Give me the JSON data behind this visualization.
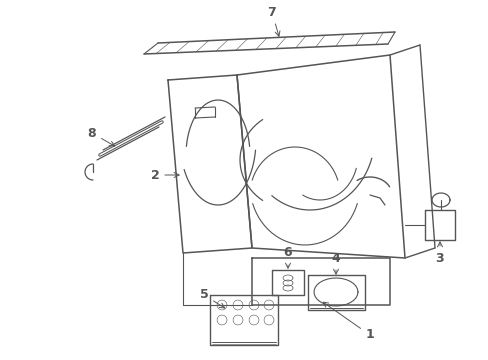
{
  "background_color": "#ffffff",
  "line_color": "#555555",
  "figsize": [
    4.89,
    3.6
  ],
  "dpi": 100,
  "label_fontsize": 9
}
